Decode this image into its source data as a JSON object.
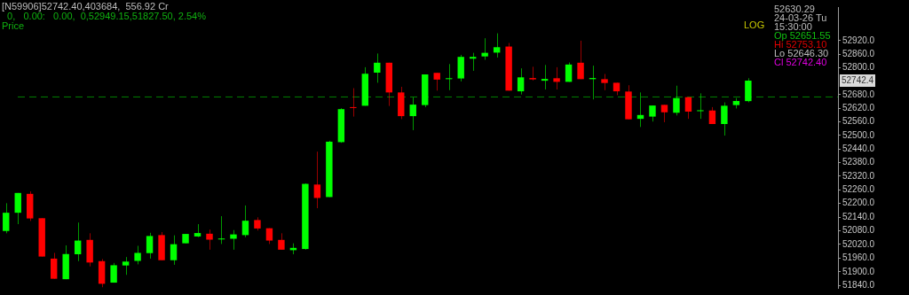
{
  "chart_data": {
    "type": "candlestick",
    "title": "[N59906]52742.40,403684,  556.92 Cr",
    "subtitle": "  0,   0.00:   0.00,  0,52949.15,51827.50, 2.54%",
    "categories": [
      null,
      null,
      null,
      null,
      null,
      null,
      null,
      null,
      null,
      null,
      null,
      null,
      null,
      null,
      null,
      null,
      null,
      null,
      null,
      null,
      null,
      null,
      null,
      null,
      null,
      null,
      null,
      null,
      null,
      null,
      null,
      null,
      null,
      null,
      null,
      null,
      null,
      null,
      null,
      null,
      null,
      null,
      null,
      null,
      null,
      null,
      null,
      null,
      null,
      null,
      null,
      null,
      null,
      null,
      null,
      null,
      null,
      null,
      null,
      null,
      null,
      null,
      null,
      null,
      null,
      null,
      null,
      null,
      null,
      null
    ],
    "ohlc": [
      [
        52079,
        52201,
        52069,
        52159
      ],
      [
        52159,
        52246,
        52109,
        52246
      ],
      [
        52242,
        52253,
        52123,
        52134
      ],
      [
        52135,
        52135,
        51967,
        51967
      ],
      [
        51958,
        51983,
        51870,
        51870
      ],
      [
        51868,
        52016,
        51868,
        51978
      ],
      [
        51977,
        52116,
        51947,
        52037
      ],
      [
        52040,
        52069,
        51924,
        51941
      ],
      [
        51947,
        51956,
        51833,
        51848
      ],
      [
        51853,
        51939,
        51853,
        51929
      ],
      [
        51928,
        51965,
        51887,
        51945
      ],
      [
        51948,
        52014,
        51933,
        51983
      ],
      [
        51982,
        52071,
        51958,
        52057
      ],
      [
        52061,
        52074,
        51951,
        51951
      ],
      [
        51951,
        52060,
        51931,
        52021
      ],
      [
        52025,
        52066,
        52025,
        52066
      ],
      [
        52055,
        52109,
        52052,
        52070
      ],
      [
        52067,
        52085,
        51997,
        52041
      ],
      [
        52042,
        52144,
        52022,
        52046
      ],
      [
        52045,
        52083,
        51997,
        52064
      ],
      [
        52061,
        52191,
        52052,
        52124
      ],
      [
        52127,
        52139,
        52081,
        52090
      ],
      [
        52091,
        52091,
        52022,
        52037
      ],
      [
        52040,
        52069,
        51997,
        51997
      ],
      [
        51995,
        52025,
        51977,
        52005
      ],
      [
        52000,
        52288,
        51997,
        52286
      ],
      [
        52283,
        52428,
        52179,
        52224
      ],
      [
        52228,
        52476,
        52228,
        52472
      ],
      [
        52470,
        52620,
        52467,
        52616
      ],
      [
        52624,
        52709,
        52583,
        52621
      ],
      [
        52631,
        52802,
        52631,
        52773
      ],
      [
        52778,
        52863,
        52733,
        52822
      ],
      [
        52822,
        52822,
        52630,
        52690
      ],
      [
        52690,
        52715,
        52572,
        52585
      ],
      [
        52585,
        52668,
        52523,
        52636
      ],
      [
        52634,
        52770,
        52625,
        52770
      ],
      [
        52777,
        52777,
        52698,
        52747
      ],
      [
        52749,
        52816,
        52700,
        52753
      ],
      [
        52752,
        52857,
        52739,
        52848
      ],
      [
        52840,
        52866,
        52786,
        52848
      ],
      [
        52850,
        52931,
        52835,
        52866
      ],
      [
        52867,
        52953,
        52845,
        52891
      ],
      [
        52894,
        52910,
        52698,
        52698
      ],
      [
        52695,
        52797,
        52681,
        52757
      ],
      [
        52754,
        52804,
        52743,
        52748
      ],
      [
        52742,
        52812,
        52703,
        52750
      ],
      [
        52753,
        52802,
        52703,
        52737
      ],
      [
        52737,
        52823,
        52737,
        52814
      ],
      [
        52822,
        52920,
        52749,
        52749
      ],
      [
        52749,
        52809,
        52659,
        52754
      ],
      [
        52749,
        52772,
        52700,
        52732
      ],
      [
        52733,
        52733,
        52678,
        52695
      ],
      [
        52694,
        52722,
        52571,
        52571
      ],
      [
        52573,
        52690,
        52537,
        52590
      ],
      [
        52583,
        52632,
        52561,
        52632
      ],
      [
        52635,
        52635,
        52558,
        52602
      ],
      [
        52600,
        52720,
        52588,
        52665
      ],
      [
        52669,
        52669,
        52573,
        52605
      ],
      [
        52607,
        52686,
        52573,
        52611
      ],
      [
        52610,
        52625,
        52550,
        52550
      ],
      [
        52550,
        52646,
        52499,
        52631
      ],
      [
        52634,
        52665,
        52619,
        52652
      ],
      [
        52651.55,
        52753.1,
        52646.3,
        52742.4
      ],
      null,
      null,
      null,
      null,
      null,
      null,
      null
    ],
    "colors": [
      "#00ff00",
      "#00ff00",
      "#ff0000",
      "#ff0000",
      "#ff0000",
      "#00ff00",
      "#00ff00",
      "#ff0000",
      "#ff0000",
      "#00ff00",
      "#00ff00",
      "#00ff00",
      "#00ff00",
      "#ff0000",
      "#00ff00",
      "#00ff00",
      "#00ff00",
      "#ff0000",
      "#00ff00",
      "#00ff00",
      "#00ff00",
      "#ff0000",
      "#ff0000",
      "#ff0000",
      "#00ff00",
      "#00ff00",
      "#ff0000",
      "#00ff00",
      "#00ff00",
      "#ff0000",
      "#00ff00",
      "#00ff00",
      "#ff0000",
      "#ff0000",
      "#00ff00",
      "#00ff00",
      "#ff0000",
      "#00ff00",
      "#00ff00",
      "#00ff00",
      "#00ff00",
      "#00ff00",
      "#ff0000",
      "#00ff00",
      "#ff0000",
      "#00ff00",
      "#ff0000",
      "#00ff00",
      "#ff0000",
      "#00ff00",
      "#ff0000",
      "#ff0000",
      "#ff0000",
      "#00ff00",
      "#00ff00",
      "#ff0000",
      "#00ff00",
      "#ff0000",
      "#00ff00",
      "#ff0000",
      "#00ff00",
      "#00ff00",
      "#00ff00",
      null,
      null,
      null,
      null,
      null,
      null,
      null
    ],
    "ylim": [
      51830,
      53070
    ],
    "yticks": [
      {
        "value": 51840,
        "label": "51840.0"
      },
      {
        "value": 51900,
        "label": "51900.0"
      },
      {
        "value": 51960,
        "label": "51960.0"
      },
      {
        "value": 52020,
        "label": "52020.0"
      },
      {
        "value": 52080,
        "label": "52080.0"
      },
      {
        "value": 52140,
        "label": "52140.0"
      },
      {
        "value": 52200,
        "label": "52200.0"
      },
      {
        "value": 52260,
        "label": "52260.0"
      },
      {
        "value": 52320,
        "label": "52320.0"
      },
      {
        "value": 52380,
        "label": "52380.0"
      },
      {
        "value": 52440,
        "label": "52440.0"
      },
      {
        "value": 52500,
        "label": "52500.0"
      },
      {
        "value": 52560,
        "label": "52560.0"
      },
      {
        "value": 52620,
        "label": "52620.0"
      },
      {
        "value": 52680,
        "label": "52680.0"
      },
      {
        "value": 52800,
        "label": "52800.0"
      },
      {
        "value": 52860,
        "label": "52860.0"
      },
      {
        "value": 52920,
        "label": "52920.0"
      }
    ],
    "log": true,
    "tick_labels": "y",
    "ref_lines": [
      {
        "axis": "y",
        "value": 52670,
        "color": "#008000",
        "line_style": "dashed"
      }
    ],
    "annotations": [
      "Price",
      "LOG",
      "52630.29",
      "24-03-26 Tu",
      "15:30:00",
      "Op 52651.55",
      "Hi 52753.10",
      "Lo 52646.30",
      "Cl 52742.40",
      {
        "text": "52742.4",
        "y": 52742.4
      }
    ]
  }
}
